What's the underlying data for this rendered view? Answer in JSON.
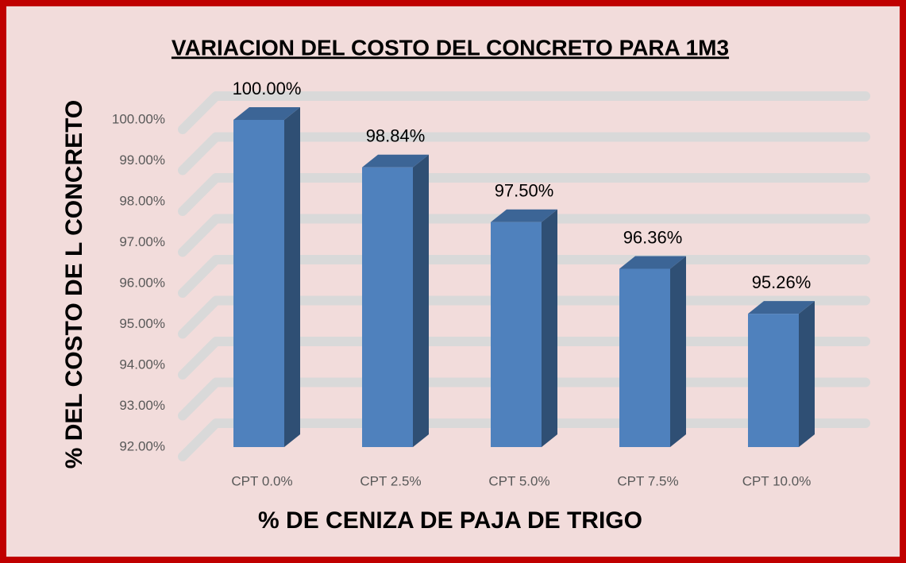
{
  "chart_data": {
    "type": "bar3d",
    "title": "VARIACION DEL COSTO DEL CONCRETO PARA 1M3",
    "xlabel": "% DE CENIZA DE PAJA DE TRIGO",
    "ylabel": "% DEL COSTO DE L CONCRETO",
    "categories": [
      "CPT 0.0%",
      "CPT 2.5%",
      "CPT 5.0%",
      "CPT 7.5%",
      "CPT 10.0%"
    ],
    "values": [
      100,
      98.84,
      97.5,
      96.36,
      95.26
    ],
    "value_labels": [
      "100.00%",
      "98.84%",
      "97.50%",
      "96.36%",
      "95.26%"
    ],
    "color": "#4f81bd",
    "ylim": [
      92,
      100
    ],
    "yticks": [
      {
        "value": 92,
        "label": "92.00%"
      },
      {
        "value": 93,
        "label": "93.00%"
      },
      {
        "value": 94,
        "label": "94.00%"
      },
      {
        "value": 95,
        "label": "95.00%"
      },
      {
        "value": 96,
        "label": "96.00%"
      },
      {
        "value": 97,
        "label": "97.00%"
      },
      {
        "value": 98,
        "label": "98.00%"
      },
      {
        "value": 99,
        "label": "99.00%"
      },
      {
        "value": 100,
        "label": "100.00%"
      }
    ],
    "grid": true
  }
}
